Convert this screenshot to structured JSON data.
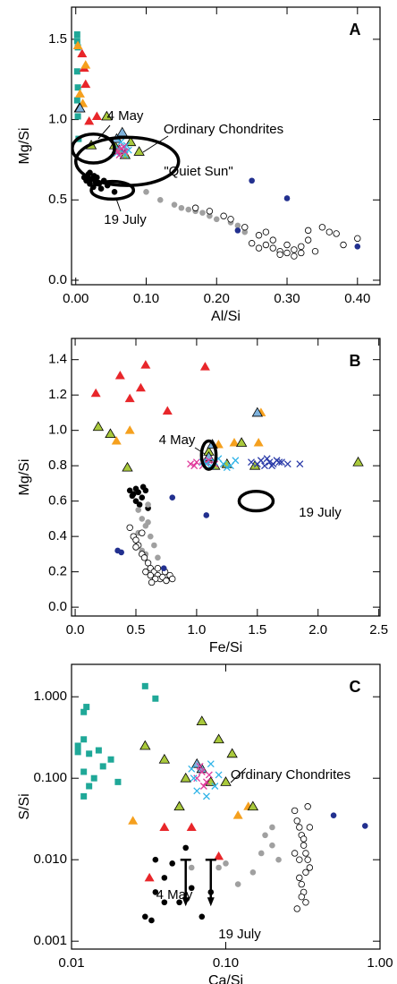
{
  "chart_data": [
    {
      "type": "scatter",
      "label": "A",
      "x_label": "Al/Si",
      "y_label": "Mg/Si",
      "xlim": [
        -0.006,
        0.432
      ],
      "ylim": [
        -0.028,
        1.7
      ],
      "xticks": [
        {
          "value": 0,
          "label": "0.00"
        },
        {
          "value": 0.1,
          "label": "0.10"
        },
        {
          "value": 0.2,
          "label": "0.20"
        },
        {
          "value": 0.3,
          "label": "0.30"
        },
        {
          "value": 0.4,
          "label": "0.40"
        }
      ],
      "yticks": [
        {
          "value": 0,
          "label": "0.0"
        },
        {
          "value": 0.5,
          "label": "0.5"
        },
        {
          "value": 1,
          "label": "1.0"
        },
        {
          "value": 1.5,
          "label": "1.5"
        }
      ],
      "series": [
        {
          "marker": "square",
          "color": "#1fa898",
          "edgecolor": "none",
          "x": [
            0.002,
            0.002,
            0.003,
            0.002,
            0.003,
            0.002,
            0.003,
            0.004
          ],
          "y": [
            1.53,
            1.49,
            1.45,
            1.3,
            1.2,
            1.12,
            1.02,
            0.88
          ]
        },
        {
          "marker": "triangle",
          "color": "#e8262a",
          "edgecolor": "none",
          "x": [
            0.009,
            0.012,
            0.014,
            0.019,
            0.03
          ],
          "y": [
            1.41,
            1.32,
            1.22,
            0.99,
            1.02
          ]
        },
        {
          "marker": "triangle",
          "color": "#f5a01e",
          "edgecolor": "none",
          "x": [
            0.003,
            0.014,
            0.01,
            0.006
          ],
          "y": [
            1.46,
            1.34,
            1.1,
            1.16
          ]
        },
        {
          "marker": "triangle",
          "color": "#a9c93c",
          "edgecolor": "#000000",
          "x": [
            0.005,
            0.044,
            0.022,
            0.055,
            0.062,
            0.078,
            0.09,
            0.07
          ],
          "y": [
            1.07,
            1.02,
            0.84,
            0.84,
            0.81,
            0.86,
            0.8,
            0.78
          ]
        },
        {
          "marker": "triangle",
          "color": "#7fb2dc",
          "edgecolor": "#000000",
          "x": [
            0.006,
            0.066,
            0.058
          ],
          "y": [
            1.07,
            0.92,
            0.88
          ]
        },
        {
          "marker": "x",
          "color": "#30b4e8",
          "edgecolor": "none",
          "x": [
            0.06,
            0.066,
            0.072,
            0.058,
            0.07,
            0.064,
            0.075
          ],
          "y": [
            0.82,
            0.8,
            0.84,
            0.79,
            0.78,
            0.86,
            0.81
          ]
        },
        {
          "marker": "x",
          "color": "#e0389a",
          "edgecolor": "none",
          "x": [
            0.06,
            0.065,
            0.07,
            0.062,
            0.068,
            0.058
          ],
          "y": [
            0.8,
            0.82,
            0.8,
            0.78,
            0.83,
            0.81
          ]
        },
        {
          "marker": "circle",
          "color": "#000000",
          "edgecolor": "none",
          "x": [
            0.012,
            0.015,
            0.018,
            0.02,
            0.022,
            0.025,
            0.028,
            0.03,
            0.033,
            0.036,
            0.04,
            0.045,
            0.055,
            0.02,
            0.026
          ],
          "y": [
            0.64,
            0.62,
            0.66,
            0.6,
            0.63,
            0.58,
            0.61,
            0.64,
            0.6,
            0.57,
            0.62,
            0.59,
            0.55,
            0.67,
            0.65
          ]
        },
        {
          "marker": "circle",
          "color": "#a0a0a0",
          "edgecolor": "none",
          "x": [
            0.1,
            0.12,
            0.14,
            0.15,
            0.16,
            0.18,
            0.19,
            0.2,
            0.21,
            0.22,
            0.23,
            0.24,
            0.17
          ],
          "y": [
            0.55,
            0.5,
            0.47,
            0.45,
            0.44,
            0.42,
            0.4,
            0.38,
            0.4,
            0.36,
            0.34,
            0.3,
            0.43
          ]
        },
        {
          "marker": "circle",
          "color": "#ffffff",
          "edgecolor": "#000000",
          "x": [
            0.17,
            0.19,
            0.21,
            0.22,
            0.24,
            0.26,
            0.27,
            0.28,
            0.29,
            0.3,
            0.31,
            0.32,
            0.33,
            0.34,
            0.35,
            0.36,
            0.38,
            0.4,
            0.27,
            0.28,
            0.29,
            0.3,
            0.31,
            0.26,
            0.32,
            0.25,
            0.33,
            0.37
          ],
          "y": [
            0.45,
            0.43,
            0.4,
            0.38,
            0.33,
            0.28,
            0.22,
            0.2,
            0.18,
            0.17,
            0.19,
            0.21,
            0.25,
            0.18,
            0.33,
            0.3,
            0.22,
            0.26,
            0.3,
            0.25,
            0.16,
            0.22,
            0.15,
            0.2,
            0.17,
            0.23,
            0.31,
            0.29
          ]
        },
        {
          "marker": "circle",
          "color": "#22308f",
          "edgecolor": "none",
          "x": [
            0.25,
            0.3,
            0.23,
            0.4
          ],
          "y": [
            0.62,
            0.51,
            0.31,
            0.21
          ]
        }
      ],
      "ellipses": [
        {
          "x": 0.073,
          "y": 0.74,
          "width": 0.146,
          "height": 0.3
        },
        {
          "x": 0.025,
          "y": 0.82,
          "width": 0.06,
          "height": 0.18
        },
        {
          "x": 0.052,
          "y": 0.56,
          "width": 0.06,
          "height": 0.11
        }
      ],
      "annotations": [
        "4 May",
        "Ordinary Chondrites",
        "\"Quiet Sun\"",
        "19 July"
      ]
    },
    {
      "type": "scatter",
      "label": "B",
      "x_label": "Fe/Si",
      "y_label": "Mg/Si",
      "xlim": [
        -0.03,
        2.51
      ],
      "ylim": [
        -0.05,
        1.52
      ],
      "xticks": [
        {
          "value": 0,
          "label": "0.0"
        },
        0.5,
        {
          "value": 1,
          "label": "1.0"
        },
        1.5,
        {
          "value": 2,
          "label": "2.0"
        },
        2.5
      ],
      "yticks": [
        {
          "value": 0,
          "label": "0.0"
        },
        0.2,
        0.4,
        0.6,
        0.8,
        {
          "value": 1,
          "label": "1.0"
        },
        1.2,
        1.4
      ],
      "series": [
        {
          "marker": "triangle",
          "color": "#e8262a",
          "edgecolor": "none",
          "x": [
            0.17,
            0.37,
            0.58,
            1.07,
            0.76,
            0.54,
            0.45
          ],
          "y": [
            1.21,
            1.31,
            1.37,
            1.36,
            1.11,
            1.24,
            1.18
          ]
        },
        {
          "marker": "triangle",
          "color": "#f5a01e",
          "edgecolor": "none",
          "x": [
            0.34,
            0.45,
            1.18,
            1.31,
            1.51,
            1.53
          ],
          "y": [
            0.94,
            1.0,
            0.92,
            0.93,
            0.93,
            1.1
          ]
        },
        {
          "marker": "triangle",
          "color": "#a9c93c",
          "edgecolor": "#000000",
          "x": [
            0.19,
            0.29,
            0.43,
            1.09,
            1.15,
            1.37,
            1.48,
            2.33,
            1.1,
            1.25
          ],
          "y": [
            1.02,
            0.98,
            0.79,
            0.84,
            0.8,
            0.93,
            0.8,
            0.82,
            0.88,
            0.81
          ]
        },
        {
          "marker": "triangle",
          "color": "#7fb2dc",
          "edgecolor": "#000000",
          "x": [
            1.13,
            1.5,
            1.1
          ],
          "y": [
            0.92,
            1.1,
            0.85
          ]
        },
        {
          "marker": "x",
          "color": "#e0389a",
          "edgecolor": "none",
          "x": [
            0.95,
            1.0,
            1.05,
            1.1,
            1.15,
            0.98,
            1.08
          ],
          "y": [
            0.81,
            0.82,
            0.8,
            0.83,
            0.81,
            0.8,
            0.82
          ]
        },
        {
          "marker": "x",
          "color": "#30b4e8",
          "edgecolor": "none",
          "x": [
            1.05,
            1.12,
            1.18,
            1.22,
            1.28,
            1.32,
            1.15,
            1.25,
            1.08
          ],
          "y": [
            0.82,
            0.8,
            0.84,
            0.81,
            0.8,
            0.83,
            0.82,
            0.79,
            0.81
          ]
        },
        {
          "marker": "x",
          "color": "#2a3aa8",
          "edgecolor": "none",
          "x": [
            1.45,
            1.5,
            1.53,
            1.56,
            1.6,
            1.63,
            1.66,
            1.7,
            1.75,
            1.58,
            1.62,
            1.68,
            1.85
          ],
          "y": [
            0.82,
            0.81,
            0.83,
            0.8,
            0.82,
            0.81,
            0.83,
            0.82,
            0.81,
            0.84,
            0.8,
            0.82,
            0.81
          ]
        },
        {
          "marker": "circle",
          "color": "#000000",
          "edgecolor": "none",
          "x": [
            0.45,
            0.48,
            0.5,
            0.52,
            0.55,
            0.58,
            0.5,
            0.53,
            0.56,
            0.47,
            0.6
          ],
          "y": [
            0.66,
            0.64,
            0.67,
            0.65,
            0.62,
            0.66,
            0.6,
            0.58,
            0.68,
            0.63,
            0.56
          ]
        },
        {
          "marker": "circle",
          "color": "#a0a0a0",
          "edgecolor": "none",
          "x": [
            0.52,
            0.55,
            0.58,
            0.6,
            0.62,
            0.65,
            0.55,
            0.58,
            0.52,
            0.68,
            0.6
          ],
          "y": [
            0.55,
            0.5,
            0.46,
            0.58,
            0.4,
            0.35,
            0.32,
            0.3,
            0.42,
            0.28,
            0.48
          ]
        },
        {
          "marker": "circle",
          "color": "#ffffff",
          "edgecolor": "#000000",
          "x": [
            0.45,
            0.48,
            0.5,
            0.52,
            0.55,
            0.57,
            0.6,
            0.62,
            0.65,
            0.68,
            0.7,
            0.72,
            0.75,
            0.78,
            0.8,
            0.58,
            0.62,
            0.66,
            0.55,
            0.5,
            0.63,
            0.68,
            0.74
          ],
          "y": [
            0.45,
            0.4,
            0.38,
            0.35,
            0.3,
            0.28,
            0.25,
            0.22,
            0.2,
            0.18,
            0.16,
            0.17,
            0.15,
            0.18,
            0.16,
            0.2,
            0.18,
            0.16,
            0.42,
            0.34,
            0.14,
            0.22,
            0.2
          ]
        },
        {
          "marker": "circle",
          "color": "#22308f",
          "edgecolor": "none",
          "x": [
            0.35,
            0.38,
            0.8,
            0.73,
            1.08
          ],
          "y": [
            0.32,
            0.31,
            0.62,
            0.22,
            0.52
          ]
        }
      ],
      "ellipses": [
        {
          "x": 1.1,
          "y": 0.86,
          "width": 0.12,
          "height": 0.16
        },
        {
          "x": 1.49,
          "y": 0.6,
          "width": 0.28,
          "height": 0.11
        }
      ],
      "annotations": [
        "4 May",
        "19 July"
      ]
    },
    {
      "type": "scatter",
      "label": "C",
      "x_label": "Ca/Si",
      "y_label": "S/Si",
      "xscale": "log",
      "yscale": "log",
      "xlim": [
        0.01,
        1.0
      ],
      "ylim": [
        0.0008,
        2.5
      ],
      "xticks": [
        0.01,
        {
          "value": 0.1,
          "label": "0.10"
        },
        {
          "value": 1,
          "label": "1.00"
        }
      ],
      "yticks": [
        0.001,
        {
          "value": 0.01,
          "label": "0.010"
        },
        {
          "value": 0.1,
          "label": "0.100"
        },
        {
          "value": 1,
          "label": "1.000"
        }
      ],
      "series": [
        {
          "marker": "square",
          "color": "#1fa898",
          "edgecolor": "none",
          "x": [
            0.011,
            0.012,
            0.013,
            0.012,
            0.014,
            0.013,
            0.012,
            0.016,
            0.018,
            0.015,
            0.02,
            0.012,
            0.0125,
            0.03,
            0.035,
            0.011
          ],
          "y": [
            0.25,
            0.3,
            0.2,
            0.12,
            0.1,
            0.08,
            0.06,
            0.14,
            0.17,
            0.22,
            0.09,
            0.65,
            0.75,
            1.35,
            0.95,
            0.21
          ]
        },
        {
          "marker": "triangle",
          "color": "#e8262a",
          "edgecolor": "none",
          "x": [
            0.032,
            0.04,
            0.09,
            0.06
          ],
          "y": [
            0.006,
            0.025,
            0.011,
            0.025
          ]
        },
        {
          "marker": "triangle",
          "color": "#f5a01e",
          "edgecolor": "none",
          "x": [
            0.025,
            0.12,
            0.14
          ],
          "y": [
            0.03,
            0.035,
            0.045
          ]
        },
        {
          "marker": "triangle",
          "color": "#a9c93c",
          "edgecolor": "#000000",
          "x": [
            0.03,
            0.04,
            0.07,
            0.09,
            0.11,
            0.055,
            0.1,
            0.05,
            0.15,
            0.08
          ],
          "y": [
            0.25,
            0.17,
            0.5,
            0.3,
            0.2,
            0.1,
            0.09,
            0.045,
            0.045,
            0.09
          ]
        },
        {
          "marker": "triangle",
          "color": "#7fb2dc",
          "edgecolor": "#000000",
          "x": [
            0.07,
            0.065
          ],
          "y": [
            0.13,
            0.15
          ]
        },
        {
          "marker": "x",
          "color": "#e0389a",
          "edgecolor": "none",
          "x": [
            0.065,
            0.07,
            0.075,
            0.068,
            0.072,
            0.078
          ],
          "y": [
            0.1,
            0.12,
            0.09,
            0.14,
            0.08,
            0.11
          ]
        },
        {
          "marker": "x",
          "color": "#30b4e8",
          "edgecolor": "none",
          "x": [
            0.06,
            0.08,
            0.085,
            0.065,
            0.09,
            0.075,
            0.062
          ],
          "y": [
            0.13,
            0.15,
            0.08,
            0.07,
            0.11,
            0.06,
            0.1
          ]
        },
        {
          "marker": "circle",
          "color": "#000000",
          "edgecolor": "none",
          "x": [
            0.03,
            0.033,
            0.035,
            0.04,
            0.045,
            0.035,
            0.05,
            0.06,
            0.07,
            0.08,
            0.04,
            0.055
          ],
          "y": [
            0.002,
            0.0018,
            0.004,
            0.006,
            0.009,
            0.01,
            0.003,
            0.0045,
            0.002,
            0.004,
            0.003,
            0.014
          ]
        },
        {
          "marker": "circle",
          "color": "#a0a0a0",
          "edgecolor": "none",
          "x": [
            0.09,
            0.1,
            0.12,
            0.15,
            0.18,
            0.2,
            0.22,
            0.17,
            0.06,
            0.2
          ],
          "y": [
            0.008,
            0.009,
            0.005,
            0.007,
            0.02,
            0.015,
            0.01,
            0.012,
            0.008,
            0.025
          ]
        },
        {
          "marker": "circle",
          "color": "#ffffff",
          "edgecolor": "#000000",
          "x": [
            0.28,
            0.29,
            0.3,
            0.31,
            0.32,
            0.33,
            0.34,
            0.35,
            0.3,
            0.31,
            0.32,
            0.33,
            0.29,
            0.34,
            0.31,
            0.32,
            0.3,
            0.33,
            0.28,
            0.35
          ],
          "y": [
            0.04,
            0.03,
            0.025,
            0.02,
            0.015,
            0.012,
            0.01,
            0.008,
            0.006,
            0.005,
            0.004,
            0.003,
            0.0025,
            0.045,
            0.0035,
            0.018,
            0.01,
            0.007,
            0.012,
            0.025
          ]
        },
        {
          "marker": "circle",
          "color": "#22308f",
          "edgecolor": "none",
          "x": [
            0.5,
            0.8
          ],
          "y": [
            0.035,
            0.026
          ]
        }
      ],
      "upper_limits": {
        "x": [
          0.055,
          0.08
        ],
        "y": [
          0.01,
          0.01
        ]
      },
      "annotations": [
        "Ordinary Chondrites",
        "4 May",
        "19 July"
      ]
    }
  ]
}
